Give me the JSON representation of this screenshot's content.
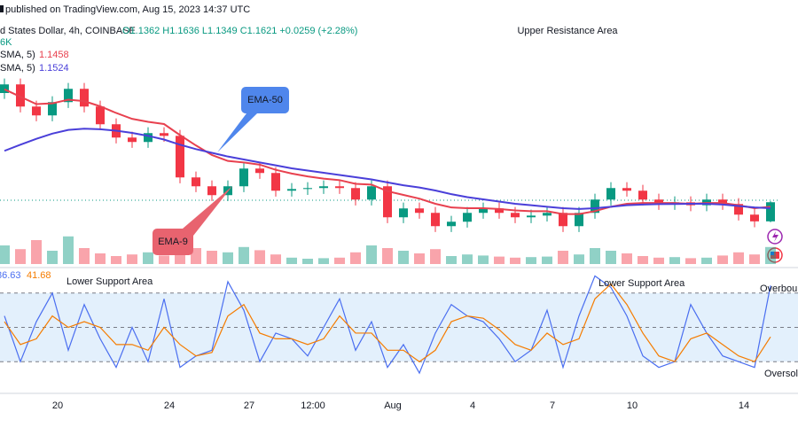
{
  "header": {
    "published": "published on TradingView.com, Aug 15, 2023 14:37 UTC",
    "symbol": "d States Dollar, 4h, COINBASE",
    "ohlc": "O1.1362 H1.1636 L1.1349 C1.1621 +0.0259 (+2.28%)",
    "volume_label": "6K",
    "ma_lines": [
      {
        "label": "SMA, 5)",
        "value": 1.1458,
        "color": "#e8414f"
      },
      {
        "label": "SMA, 5)",
        "value": 1.1524,
        "color": "#4a3fd9"
      }
    ]
  },
  "chart_data": {
    "type": "candlestick",
    "categories": [
      null,
      null,
      null,
      "20",
      null,
      null,
      null,
      null,
      null,
      null,
      "24",
      null,
      null,
      null,
      null,
      "27",
      null,
      null,
      null,
      "12:00",
      null,
      null,
      null,
      null,
      "Aug",
      null,
      null,
      null,
      null,
      "4",
      null,
      null,
      null,
      null,
      "7",
      null,
      null,
      null,
      null,
      "10",
      null,
      null,
      null,
      null,
      null,
      null,
      "14",
      null,
      null
    ],
    "open": [
      1.31,
      1.3217,
      1.2917,
      1.2797,
      1.2977,
      1.3157,
      1.2917,
      1.2677,
      1.2497,
      1.2437,
      1.2557,
      1.252,
      1.1957,
      1.1837,
      1.1717,
      1.1837,
      1.2077,
      1.2017,
      1.1777,
      1.18,
      1.1813,
      1.1837,
      1.1813,
      1.1657,
      1.1837,
      1.1417,
      1.1537,
      1.1477,
      1.1297,
      1.1357,
      1.1477,
      1.1537,
      1.1477,
      1.1417,
      1.144,
      1.1477,
      1.1297,
      1.1477,
      1.1657,
      1.1813,
      1.1777,
      1.1657,
      1.1597,
      1.162,
      1.158,
      1.1657,
      1.1597,
      1.1453,
      1.1362
    ],
    "high": [
      1.3297,
      1.3297,
      1.2997,
      1.3057,
      1.3237,
      1.3237,
      1.2997,
      1.2757,
      1.2577,
      1.2637,
      1.2637,
      1.26,
      1.2037,
      1.1917,
      1.1917,
      1.2157,
      1.2157,
      1.2097,
      1.188,
      1.1893,
      1.1917,
      1.1917,
      1.1893,
      1.1917,
      1.1917,
      1.1617,
      1.1617,
      1.1557,
      1.1437,
      1.1557,
      1.1617,
      1.1617,
      1.1557,
      1.152,
      1.1557,
      1.1557,
      1.1557,
      1.1737,
      1.1893,
      1.1893,
      1.1857,
      1.1737,
      1.17,
      1.17,
      1.1737,
      1.1737,
      1.1677,
      1.1533,
      1.1636
    ],
    "low": [
      1.302,
      1.2837,
      1.2717,
      1.2717,
      1.2897,
      1.2837,
      1.2597,
      1.2417,
      1.2357,
      1.2357,
      1.244,
      1.1877,
      1.1757,
      1.1637,
      1.1637,
      1.1757,
      1.1937,
      1.1697,
      1.1697,
      1.172,
      1.1733,
      1.1733,
      1.1577,
      1.1577,
      1.1337,
      1.1337,
      1.1397,
      1.1217,
      1.1217,
      1.1277,
      1.1397,
      1.1397,
      1.1337,
      1.1337,
      1.136,
      1.1217,
      1.1217,
      1.1397,
      1.1577,
      1.1697,
      1.1577,
      1.1517,
      1.1517,
      1.15,
      1.15,
      1.1517,
      1.1373,
      1.1282,
      1.1349
    ],
    "close": [
      1.3217,
      1.2917,
      1.2797,
      1.2977,
      1.3157,
      1.2917,
      1.2677,
      1.2497,
      1.2437,
      1.2557,
      1.252,
      1.1957,
      1.1837,
      1.1717,
      1.1837,
      1.2077,
      1.2017,
      1.1777,
      1.18,
      1.1813,
      1.1837,
      1.1813,
      1.1657,
      1.1837,
      1.1417,
      1.1537,
      1.1477,
      1.1297,
      1.1357,
      1.1477,
      1.1537,
      1.1477,
      1.1417,
      1.144,
      1.1477,
      1.1297,
      1.1477,
      1.1657,
      1.1813,
      1.1777,
      1.1657,
      1.1597,
      1.162,
      1.158,
      1.1657,
      1.1597,
      1.1453,
      1.1362,
      1.1621
    ],
    "up_color": "#089981",
    "down_color": "#f23645",
    "ylim": [
      1.076,
      1.4
    ],
    "series": [
      {
        "name": "EMA-9",
        "color": "#e8414f",
        "values": [
          1.315,
          1.305,
          1.295,
          1.296,
          1.301,
          1.299,
          1.292,
          1.283,
          1.275,
          1.271,
          1.268,
          1.253,
          1.239,
          1.226,
          1.218,
          1.216,
          1.213,
          1.206,
          1.201,
          1.197,
          1.194,
          1.192,
          1.187,
          1.186,
          1.177,
          1.172,
          1.167,
          1.16,
          1.155,
          1.154,
          1.154,
          1.153,
          1.151,
          1.15,
          1.15,
          1.146,
          1.146,
          1.15,
          1.156,
          1.16,
          1.161,
          1.161,
          1.161,
          1.16,
          1.161,
          1.161,
          1.158,
          1.154,
          1.156
        ]
      },
      {
        "name": "EMA-50",
        "color": "#4a3fd9",
        "values": [
          1.2317,
          1.24,
          1.248,
          1.255,
          1.26,
          1.2617,
          1.261,
          1.259,
          1.256,
          1.252,
          1.247,
          1.24,
          1.234,
          1.229,
          1.224,
          1.22,
          1.216,
          1.212,
          1.208,
          1.205,
          1.202,
          1.199,
          1.196,
          1.193,
          1.189,
          1.185,
          1.182,
          1.178,
          1.173,
          1.169,
          1.166,
          1.163,
          1.16,
          1.158,
          1.156,
          1.154,
          1.153,
          1.154,
          1.156,
          1.158,
          1.159,
          1.1595,
          1.1597,
          1.16,
          1.16,
          1.159,
          1.157,
          1.155,
          1.154
        ]
      }
    ],
    "volume": {
      "ylim": [
        0,
        10000
      ],
      "values": [
        3500,
        2800,
        4500,
        2500,
        5200,
        3000,
        2000,
        1500,
        1800,
        2200,
        1600,
        4000,
        3000,
        2500,
        2200,
        3200,
        2600,
        1800,
        1200,
        1000,
        1100,
        1200,
        2200,
        3500,
        3000,
        2500,
        2000,
        2800,
        1500,
        1800,
        1600,
        1400,
        1200,
        1300,
        1400,
        2500,
        1800,
        3000,
        2500,
        2000,
        1500,
        1200,
        1300,
        1100,
        1200,
        1600,
        2200,
        1800,
        3200
      ]
    },
    "stochastic": {
      "ylim": [
        0,
        100
      ],
      "levels": [
        80,
        50,
        20
      ],
      "band_color": "#e3f0fc",
      "series": [
        {
          "color": "#4a6ef0",
          "values": [
            60,
            20,
            55,
            80,
            30,
            70,
            40,
            15,
            50,
            20,
            75,
            15,
            25,
            30,
            90,
            65,
            20,
            45,
            40,
            25,
            50,
            75,
            30,
            55,
            15,
            35,
            10,
            45,
            70,
            60,
            55,
            40,
            20,
            30,
            65,
            15,
            60,
            95,
            85,
            60,
            25,
            15,
            20,
            70,
            45,
            25,
            20,
            15,
            86.63
          ]
        },
        {
          "color": "#f57c00",
          "values": [
            55,
            35,
            40,
            60,
            50,
            55,
            50,
            35,
            35,
            30,
            50,
            35,
            25,
            28,
            60,
            70,
            45,
            40,
            40,
            35,
            40,
            60,
            45,
            45,
            30,
            30,
            20,
            30,
            55,
            60,
            58,
            48,
            35,
            30,
            45,
            35,
            40,
            75,
            88,
            70,
            45,
            25,
            20,
            40,
            45,
            35,
            25,
            20,
            41.68
          ]
        }
      ]
    },
    "annotations": [
      "Upper Resistance Area",
      "Lower Support Area",
      "Lower Support Area",
      "Overbou",
      "Oversol"
    ]
  }
}
